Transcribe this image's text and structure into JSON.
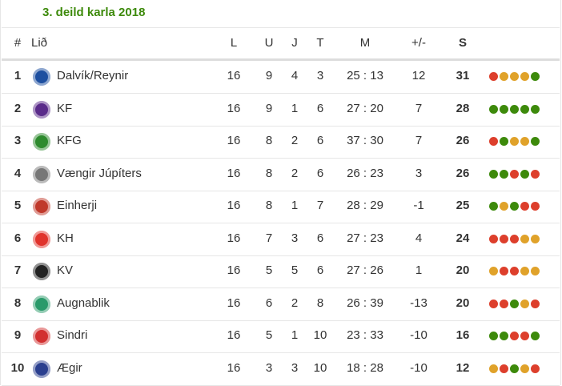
{
  "title": "3. deild karla 2018",
  "headers": {
    "pos": "#",
    "team": "Lið",
    "played": "L",
    "won": "U",
    "drawn": "J",
    "lost": "T",
    "goals": "M",
    "diff": "+/-",
    "points": "S"
  },
  "colors": {
    "W": "#3d8a0b",
    "D": "#e0a22a",
    "L": "#dd3f2c",
    "title": "#3d8a0b"
  },
  "rows": [
    {
      "pos": "1",
      "team": "Dalvík/Reynir",
      "logo": "#1d4fa0",
      "played": "16",
      "won": "9",
      "drawn": "4",
      "lost": "3",
      "goals": "25 : 13",
      "diff": "12",
      "points": "31",
      "form": [
        "L",
        "D",
        "D",
        "D",
        "W"
      ]
    },
    {
      "pos": "2",
      "team": "KF",
      "logo": "#5a2b8a",
      "played": "16",
      "won": "9",
      "drawn": "1",
      "lost": "6",
      "goals": "27 : 20",
      "diff": "7",
      "points": "28",
      "form": [
        "W",
        "W",
        "W",
        "W",
        "W"
      ]
    },
    {
      "pos": "3",
      "team": "KFG",
      "logo": "#2e8b2e",
      "played": "16",
      "won": "8",
      "drawn": "2",
      "lost": "6",
      "goals": "37 : 30",
      "diff": "7",
      "points": "26",
      "form": [
        "L",
        "W",
        "D",
        "D",
        "W"
      ]
    },
    {
      "pos": "4",
      "team": "Vængir Júpíters",
      "logo": "#777777",
      "played": "16",
      "won": "8",
      "drawn": "2",
      "lost": "6",
      "goals": "26 : 23",
      "diff": "3",
      "points": "26",
      "form": [
        "W",
        "W",
        "L",
        "W",
        "L"
      ]
    },
    {
      "pos": "5",
      "team": "Einherji",
      "logo": "#c0392b",
      "played": "16",
      "won": "8",
      "drawn": "1",
      "lost": "7",
      "goals": "28 : 29",
      "diff": "-1",
      "points": "25",
      "form": [
        "W",
        "D",
        "W",
        "L",
        "L"
      ]
    },
    {
      "pos": "6",
      "team": "KH",
      "logo": "#e0332c",
      "played": "16",
      "won": "7",
      "drawn": "3",
      "lost": "6",
      "goals": "27 : 23",
      "diff": "4",
      "points": "24",
      "form": [
        "L",
        "L",
        "L",
        "D",
        "D"
      ]
    },
    {
      "pos": "7",
      "team": "KV",
      "logo": "#222222",
      "played": "16",
      "won": "5",
      "drawn": "5",
      "lost": "6",
      "goals": "27 : 26",
      "diff": "1",
      "points": "20",
      "form": [
        "D",
        "L",
        "L",
        "D",
        "D"
      ]
    },
    {
      "pos": "8",
      "team": "Augnablik",
      "logo": "#2a9a6a",
      "played": "16",
      "won": "6",
      "drawn": "2",
      "lost": "8",
      "goals": "26 : 39",
      "diff": "-13",
      "points": "20",
      "form": [
        "L",
        "L",
        "W",
        "D",
        "L"
      ]
    },
    {
      "pos": "9",
      "team": "Sindri",
      "logo": "#d23030",
      "played": "16",
      "won": "5",
      "drawn": "1",
      "lost": "10",
      "goals": "23 : 33",
      "diff": "-10",
      "points": "16",
      "form": [
        "W",
        "W",
        "L",
        "L",
        "W"
      ]
    },
    {
      "pos": "10",
      "team": "Ægir",
      "logo": "#2a3f8f",
      "played": "16",
      "won": "3",
      "drawn": "3",
      "lost": "10",
      "goals": "18 : 28",
      "diff": "-10",
      "points": "12",
      "form": [
        "D",
        "L",
        "W",
        "D",
        "L"
      ]
    }
  ]
}
